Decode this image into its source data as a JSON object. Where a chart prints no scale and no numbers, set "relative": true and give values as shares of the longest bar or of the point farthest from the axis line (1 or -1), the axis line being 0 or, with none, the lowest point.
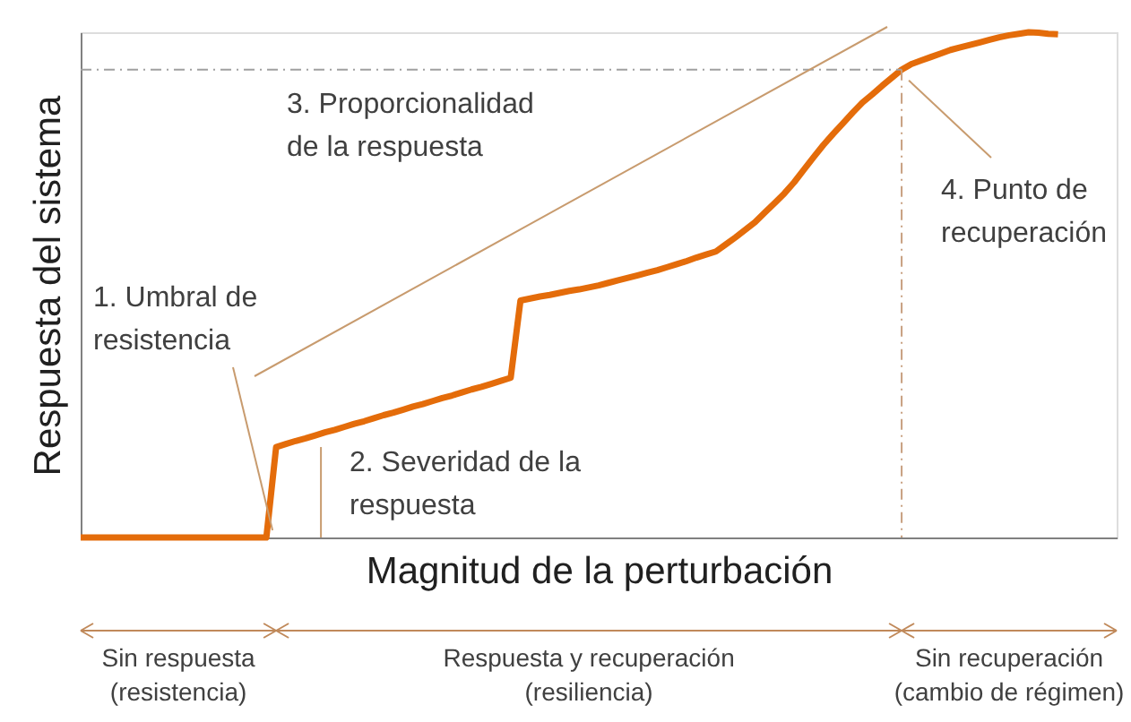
{
  "chart_data": {
    "type": "line",
    "relative": true,
    "xlabel": "Magnitud de la perturbación",
    "ylabel": "Respuesta del sistema",
    "tick_labels": false,
    "grid": false,
    "marker": "none",
    "line_style": "solid",
    "categories": [
      null,
      null,
      null,
      null,
      null,
      null,
      null,
      null,
      null,
      null,
      null,
      null,
      null,
      null,
      null,
      null,
      null,
      null,
      null,
      null,
      null,
      null,
      null,
      null,
      null,
      null,
      null,
      null,
      null,
      null,
      null,
      null,
      null,
      null,
      null,
      null,
      null,
      null,
      null,
      null,
      null,
      null,
      null,
      null,
      null,
      null,
      null,
      null,
      null,
      null,
      null,
      null,
      null,
      null,
      null,
      null,
      null,
      null,
      null,
      null,
      null,
      null,
      null,
      null,
      null,
      null,
      null,
      null,
      null,
      null,
      null,
      null,
      null,
      null,
      null,
      null,
      null,
      null,
      null,
      null,
      null,
      null,
      null,
      null,
      null,
      null,
      null,
      null,
      null,
      null,
      null,
      null,
      null,
      null,
      null,
      null,
      null,
      null,
      null,
      null,
      null,
      null,
      null,
      null,
      null,
      null,
      null
    ],
    "series": [
      {
        "color": "#e46c0a",
        "values": [
          0,
          0,
          0,
          0,
          0,
          0,
          0,
          0,
          0,
          0,
          0,
          0,
          0,
          0,
          0,
          0,
          0,
          0,
          0,
          0,
          0.179,
          0.185,
          0.191,
          0.196,
          0.202,
          0.208,
          0.213,
          0.219,
          0.225,
          0.23,
          0.236,
          0.242,
          0.247,
          0.253,
          0.259,
          0.264,
          0.27,
          0.276,
          0.281,
          0.287,
          0.293,
          0.298,
          0.304,
          0.31,
          0.316,
          0.469,
          0.473,
          0.477,
          0.48,
          0.484,
          0.488,
          0.491,
          0.495,
          0.499,
          0.504,
          0.509,
          0.514,
          0.519,
          0.524,
          0.529,
          0.535,
          0.541,
          0.547,
          0.554,
          0.56,
          0.566,
          0.58,
          0.594,
          0.609,
          0.624,
          0.643,
          0.662,
          0.681,
          0.703,
          0.728,
          0.753,
          0.777,
          0.799,
          0.82,
          0.841,
          0.861,
          0.877,
          0.894,
          0.91,
          0.926,
          0.937,
          0.944,
          0.951,
          0.958,
          0.965,
          0.97,
          0.975,
          0.98,
          0.985,
          0.99,
          0.994,
          0.997,
          1.0,
          0.999,
          0.997,
          0.996,
          null,
          null,
          null,
          null,
          null,
          null
        ]
      }
    ],
    "annotations": [
      "1. Umbral de resistencia",
      "2. Severidad de la respuesta",
      "3. Proporcionalidad de la respuesta",
      "4. Punto de recuperación",
      "Sin respuesta (resistencia)",
      "Respuesta y recuperación (resiliencia)",
      "Sin recuperación (cambio de régimen)"
    ]
  }
}
